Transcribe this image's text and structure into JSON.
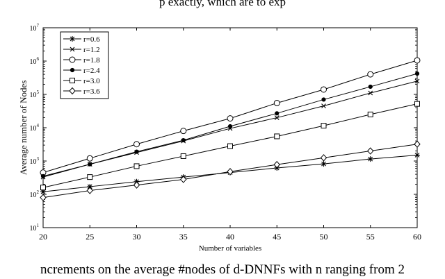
{
  "caption_top": "p exactly, which are to exp",
  "caption_bottom": "ncrements on the average #nodes of d-DNNFs with n ranging from 2",
  "chart_data": {
    "type": "line",
    "title": "",
    "xlabel": "Number of variables",
    "ylabel": "Average number of Nodes",
    "x": [
      20,
      25,
      30,
      35,
      40,
      45,
      50,
      55,
      60
    ],
    "xlim": [
      20,
      60
    ],
    "xticks": [
      "20",
      "25",
      "30",
      "35",
      "40",
      "45",
      "50",
      "55",
      "60"
    ],
    "ylim": [
      10,
      10000000
    ],
    "yscale": "log",
    "yticks": [
      "10^1",
      "10^2",
      "10^3",
      "10^4",
      "10^5",
      "10^6",
      "10^7"
    ],
    "grid": false,
    "legend_position": "top-left",
    "series": [
      {
        "name": "r=0.6",
        "marker": "star",
        "values": [
          120,
          170,
          240,
          330,
          450,
          620,
          820,
          1150,
          1500
        ]
      },
      {
        "name": "r=1.2",
        "marker": "x",
        "values": [
          330,
          800,
          1800,
          4000,
          9500,
          20000,
          45000,
          110000,
          250000
        ]
      },
      {
        "name": "r=1.8",
        "marker": "circle",
        "values": [
          450,
          1200,
          3200,
          8000,
          19000,
          55000,
          140000,
          400000,
          1050000
        ]
      },
      {
        "name": "r=2.4",
        "marker": "dot",
        "values": [
          350,
          800,
          1900,
          4200,
          11000,
          27000,
          70000,
          170000,
          420000
        ]
      },
      {
        "name": "r=3.0",
        "marker": "square",
        "values": [
          160,
          330,
          700,
          1400,
          2800,
          5500,
          11500,
          25000,
          52000
        ]
      },
      {
        "name": "r=3.6",
        "marker": "diamond",
        "values": [
          80,
          130,
          190,
          280,
          480,
          780,
          1250,
          2000,
          3200
        ]
      }
    ]
  }
}
